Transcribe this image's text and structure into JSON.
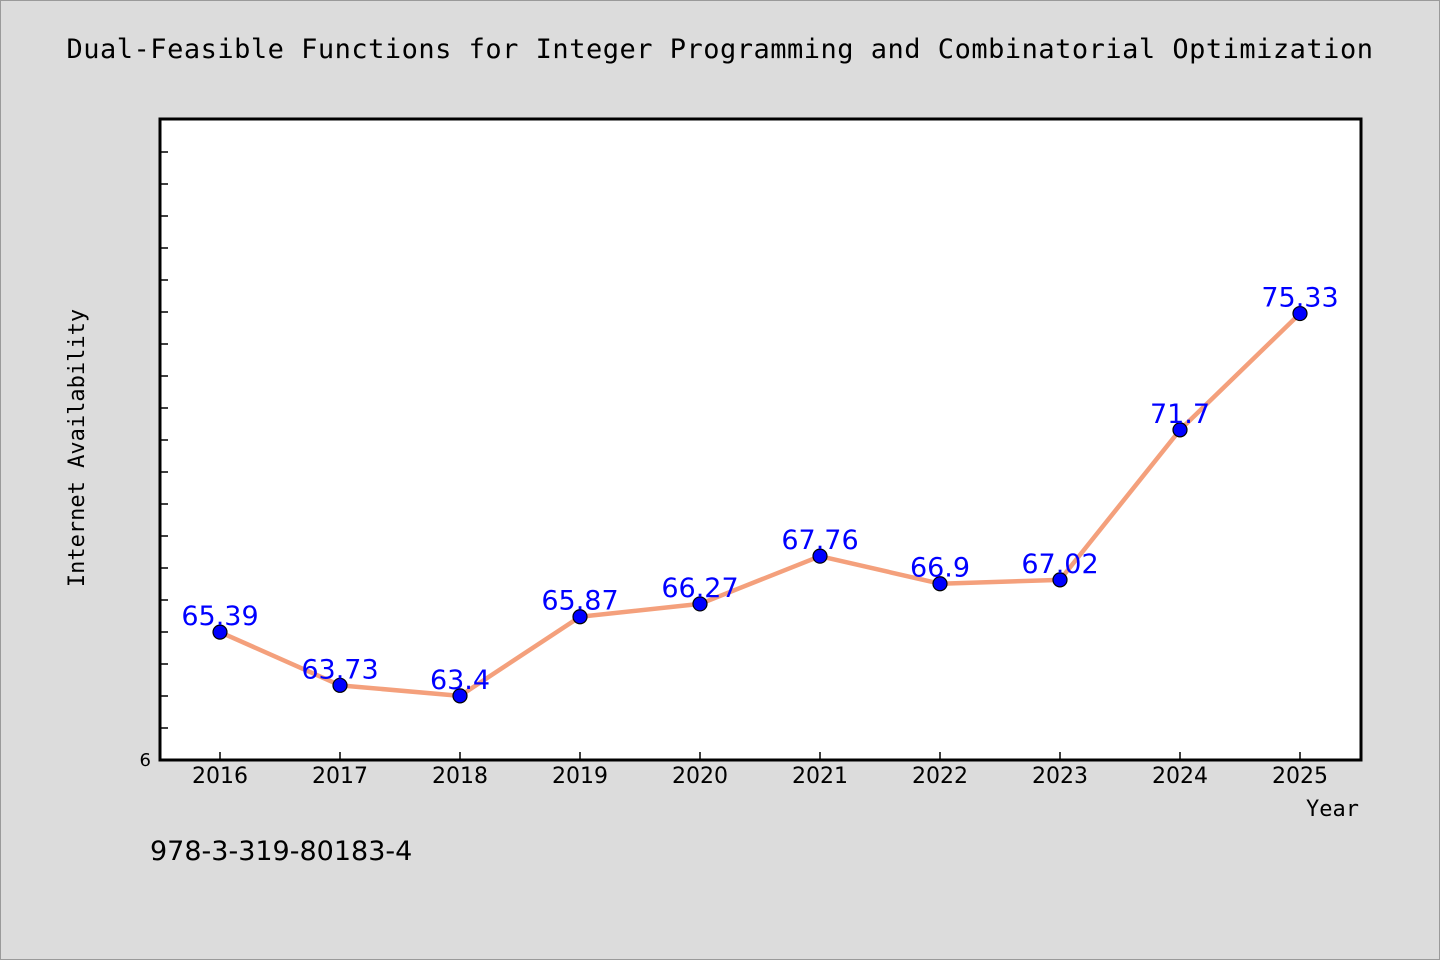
{
  "chart_data": {
    "type": "line",
    "title": "Dual-Feasible Functions for Integer Programming and Combinatorial Optimization",
    "xlabel": "Year",
    "ylabel": "Internet Availability",
    "categories": [
      "2016",
      "2017",
      "2018",
      "2019",
      "2020",
      "2021",
      "2022",
      "2023",
      "2024",
      "2025"
    ],
    "series": [
      {
        "values": [
          65.39,
          63.73,
          63.4,
          65.87,
          66.27,
          67.76,
          66.9,
          67.02,
          71.7,
          75.33
        ]
      }
    ],
    "data_labels": [
      "65.39",
      "63.73",
      "63.4",
      "65.87",
      "66.27",
      "67.76",
      "66.9",
      "67.02",
      "71.7",
      "75.33"
    ],
    "ylim": [
      61.4,
      81.4
    ],
    "y_tick_label": "6",
    "grid": false,
    "colors": {
      "line": "#f4a07c",
      "marker": "#0000ff",
      "label": "#0000ff",
      "background": "#dcdcdc",
      "plot_bg": "#ffffff"
    }
  },
  "footer": {
    "isbn": "978-3-319-80183-4"
  }
}
